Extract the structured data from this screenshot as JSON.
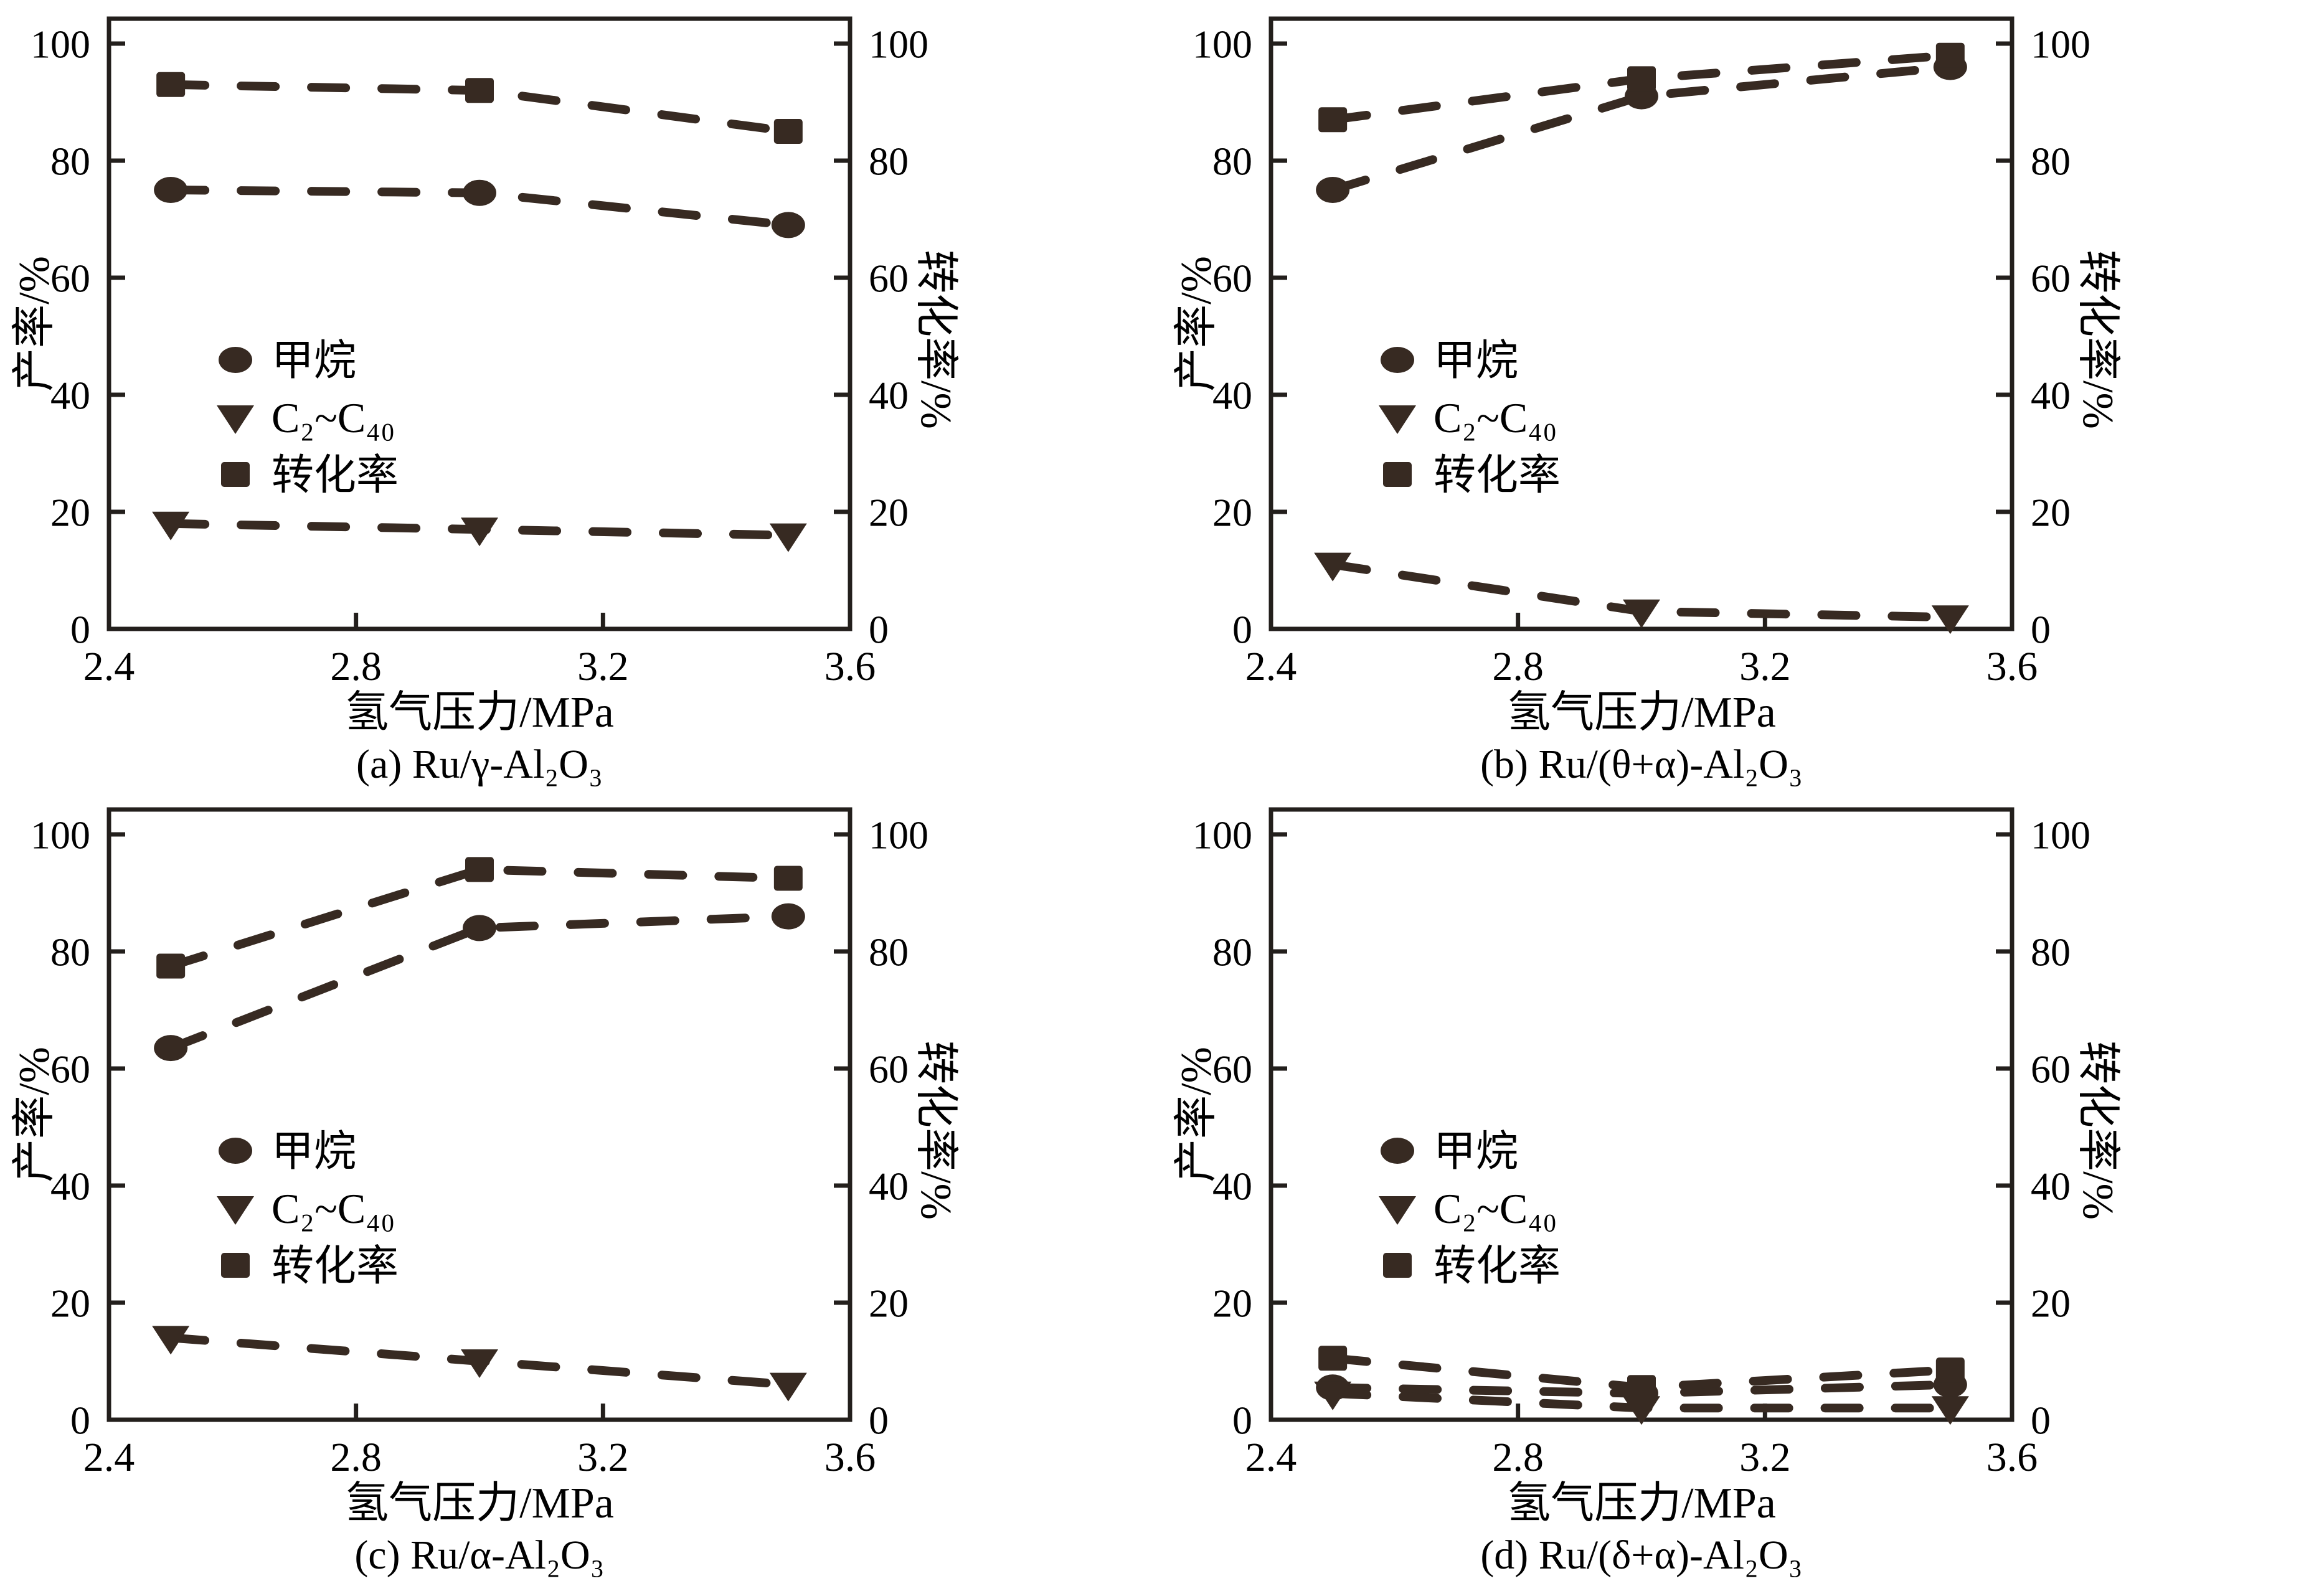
{
  "figure": {
    "background": "#ffffff",
    "text_color": "#000000",
    "axis_color": "#231f1c",
    "marker_color": "#372a22"
  },
  "axes": {
    "x_label": "氢气压力/MPa",
    "y_left_label": "产率/%",
    "y_right_label": "转化率/%",
    "x_ticks": [
      "2.4",
      "2.8",
      "3.2",
      "3.6"
    ],
    "y_ticks": [
      "0",
      "20",
      "40",
      "60",
      "80",
      "100"
    ],
    "xlim": [
      2.4,
      3.6
    ],
    "ylim": [
      0,
      100
    ],
    "grid": "off"
  },
  "legend": {
    "position": "inside-left-middle",
    "items": [
      {
        "marker": "circle",
        "label": "甲烷"
      },
      {
        "marker": "triangle-down",
        "label": "C₂~C₄₀"
      },
      {
        "marker": "square",
        "label": "转化率"
      }
    ]
  },
  "chart_data": [
    {
      "type": "line",
      "caption": "(a) Ru/γ-Al₂O₃",
      "x": [
        2.5,
        3.0,
        3.5
      ],
      "series": [
        {
          "name": "甲烷",
          "marker": "circle",
          "values": [
            75,
            74.5,
            69
          ]
        },
        {
          "name": "C₂~C₄₀",
          "marker": "triangle-down",
          "values": [
            18,
            17,
            16
          ]
        },
        {
          "name": "转化率",
          "marker": "square",
          "values": [
            93,
            92,
            85
          ]
        }
      ]
    },
    {
      "type": "line",
      "caption": "(b) Ru/(θ+α)-Al₂O₃",
      "x": [
        2.5,
        3.0,
        3.5
      ],
      "series": [
        {
          "name": "甲烷",
          "marker": "circle",
          "values": [
            75,
            91,
            96
          ]
        },
        {
          "name": "C₂~C₄₀",
          "marker": "triangle-down",
          "values": [
            11,
            3,
            2
          ]
        },
        {
          "name": "转化率",
          "marker": "square",
          "values": [
            87,
            94,
            98
          ]
        }
      ]
    },
    {
      "type": "line",
      "caption": "(c) Ru/α-Al₂O₃",
      "x": [
        2.5,
        3.0,
        3.5
      ],
      "series": [
        {
          "name": "甲烷",
          "marker": "circle",
          "values": [
            63.5,
            84,
            86
          ]
        },
        {
          "name": "C₂~C₄₀",
          "marker": "triangle-down",
          "values": [
            14,
            10,
            6
          ]
        },
        {
          "name": "转化率",
          "marker": "square",
          "values": [
            77.5,
            94,
            92.5
          ]
        }
      ]
    },
    {
      "type": "line",
      "caption": "(d) Ru/(δ+α)-Al₂O₃",
      "x": [
        2.5,
        3.0,
        3.5
      ],
      "series": [
        {
          "name": "甲烷",
          "marker": "circle",
          "values": [
            5.5,
            4.5,
            6
          ]
        },
        {
          "name": "C₂~C₄₀",
          "marker": "triangle-down",
          "values": [
            4.5,
            2,
            2
          ]
        },
        {
          "name": "转化率",
          "marker": "square",
          "values": [
            10.5,
            5.5,
            8.5
          ]
        }
      ]
    }
  ]
}
